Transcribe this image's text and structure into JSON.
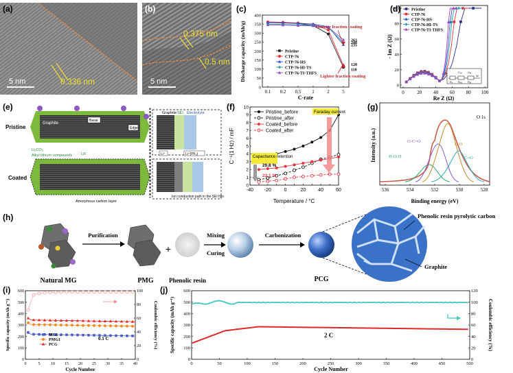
{
  "panel_labels": [
    "(a)",
    "(b)",
    "(c)",
    "(d)",
    "(e)",
    "(f)",
    "(g)",
    "(h)",
    "(i)",
    "(j)"
  ],
  "panel_a": {
    "scale": "5 nm",
    "spacing": "0.336 nm"
  },
  "panel_b": {
    "scale": "5 nm",
    "spacing_1": "0.375 nm",
    "spacing_2": "0.5 nm"
  },
  "panel_e": {
    "rows": [
      "Pristine",
      "Coated"
    ],
    "labels": [
      "Graphite",
      "SEI",
      "Electrolyte",
      "Li₂CO₃",
      "Alkyl lithium compounds",
      "LiF",
      "Amorphous carbon layer",
      "Ion conduction path in the SEI film"
    ],
    "boxes": [
      "Basal",
      "Edge",
      "Li⁺",
      "Li⁺(PF₆)"
    ]
  },
  "panel_g": {
    "title": "O 1s",
    "peaks": [
      "O-C=O",
      "C-O",
      "H-O-H",
      "C=O"
    ]
  },
  "panel_h": {
    "steps": [
      "Purification",
      "Mixing",
      "Curing",
      "Carbonization"
    ],
    "items": [
      "Natural MG",
      "PMG",
      "Phenolic resin",
      "PCG"
    ],
    "callouts": [
      "Phenolic resin pyrolytic carbon",
      "Graphite"
    ],
    "plus": "+"
  },
  "chart_data": [
    {
      "panel": "(c)",
      "type": "line",
      "xlabel": "C-rate",
      "ylabel": "Discharge capacity (mAh/g)",
      "categories": [
        "0.1",
        "0.2",
        "0.5",
        "1",
        "2",
        "5"
      ],
      "ylim": [
        0,
        400
      ],
      "yticks": [
        "0",
        "50",
        "100",
        "150",
        "200",
        "250",
        "300",
        "350",
        "400"
      ],
      "series": [
        {
          "name": "Pristine",
          "color": "#222222",
          "values": [
            358,
            357,
            353,
            342,
            295,
            110
          ]
        },
        {
          "name": "CTP-76",
          "color": "#e8303a",
          "values": [
            362,
            360,
            356,
            348,
            318,
            120
          ]
        },
        {
          "name": "CTP-76-HS",
          "color": "#2b4fd0",
          "values": [
            358,
            356,
            354,
            350,
            335,
            235
          ]
        },
        {
          "name": "CTP-76-HI-TS",
          "color": "#2a9aa6",
          "values": [
            350,
            348,
            346,
            343,
            330,
            248
          ]
        },
        {
          "name": "CTP-76-TI-THFS",
          "color": "#8a4ac8",
          "values": [
            345,
            344,
            342,
            340,
            332,
            263
          ]
        }
      ],
      "end_labels": [
        "263",
        "248",
        "235",
        "120",
        "110"
      ],
      "annotations": [
        "Heavier fraction coating",
        "Lighter fraction coating"
      ]
    },
    {
      "panel": "(d)",
      "type": "scatter",
      "xlabel": "Re Z (Ω)",
      "ylabel": "- Im Z (Ω)",
      "xlim": [
        0,
        100
      ],
      "ylim": [
        0,
        100
      ],
      "xticks": [
        "0",
        "20",
        "40",
        "60",
        "80",
        "100"
      ],
      "yticks": [
        "0",
        "20",
        "40",
        "60",
        "80",
        "100"
      ],
      "series": [
        {
          "name": "Pristine",
          "color": "#2a2a8a"
        },
        {
          "name": "CTP-76",
          "color": "#e8303a"
        },
        {
          "name": "CTP-76-HS",
          "color": "#2b4fd0"
        },
        {
          "name": "CTP-76-HI-TS",
          "color": "#2a9aa6"
        },
        {
          "name": "CTP-76-TI-THFS",
          "color": "#a040c0"
        }
      ],
      "circuit_labels": [
        "Rₛ",
        "Rₛₑ",
        "Cₛₑ",
        "Rₑₜ",
        "Cₑₜ",
        "W"
      ]
    },
    {
      "panel": "(f)",
      "type": "line",
      "xlabel": "Temperature / °C",
      "ylabel": "C⁻¹(1 Hz) / mF",
      "x": [
        -30,
        -20,
        -10,
        0,
        10,
        20,
        30,
        40,
        50,
        60
      ],
      "xlim": [
        -40,
        60
      ],
      "ylim": [
        0,
        10
      ],
      "xticks": [
        "-40",
        "-30",
        "-20",
        "-10",
        "0",
        "10",
        "20",
        "30",
        "40",
        "50",
        "60"
      ],
      "yticks": [
        "0",
        "1",
        "2",
        "3",
        "4",
        "5",
        "6",
        "7",
        "8",
        "9",
        "10"
      ],
      "series": [
        {
          "name": "Pristine_before",
          "color": "#111111",
          "values": [
            3.4,
            3.7,
            4.0,
            4.3,
            4.6,
            5.0,
            5.5,
            6.1,
            7.0,
            9.0
          ]
        },
        {
          "name": "Pristine_after",
          "color": "#111111",
          "values": [
            0.7,
            0.9,
            1.2,
            1.5,
            1.9,
            2.3,
            2.8,
            3.3,
            3.6,
            3.9
          ]
        },
        {
          "name": "Coated_before",
          "color": "#e8303a",
          "values": [
            2.0,
            2.1,
            2.2,
            2.4,
            2.6,
            2.8,
            3.0,
            3.2,
            3.4,
            3.6
          ]
        },
        {
          "name": "Coated_after",
          "color": "#e8303a",
          "values": [
            0.4,
            0.5,
            0.6,
            0.8,
            1.0,
            1.1,
            1.2,
            1.3,
            1.4,
            1.4
          ]
        }
      ],
      "annotations": [
        "Faraday current",
        "Capacitance retention",
        "20.8 %",
        "23.1 %"
      ]
    },
    {
      "panel": "(g)",
      "type": "line",
      "xlabel": "Binding energy (eV)",
      "ylabel": "Intensity (a.u.)",
      "xlim": [
        536,
        528
      ],
      "xticks": [
        "536",
        "534",
        "532",
        "530",
        "528"
      ]
    },
    {
      "panel": "(i)",
      "type": "line",
      "xlabel": "Cycle Number",
      "ylabel": "Specific capacity (mAh g⁻¹)",
      "y2label": "Coulombic efficiency (%)",
      "xlim": [
        0,
        40
      ],
      "ylim": [
        0,
        600
      ],
      "y2lim": [
        0,
        100
      ],
      "xticks": [
        "0",
        "5",
        "10",
        "15",
        "20",
        "25",
        "30",
        "35",
        "40"
      ],
      "yticks": [
        "0",
        "100",
        "200",
        "300",
        "400",
        "500",
        "600"
      ],
      "y2ticks": [
        "0",
        "20",
        "40",
        "60",
        "80",
        "100"
      ],
      "rate": "0.1 C",
      "series": [
        {
          "name": "MG1",
          "color": "#4a5cc8",
          "value": 220
        },
        {
          "name": "PMG1",
          "color": "#f08a2a",
          "value": 305
        },
        {
          "name": "PCG",
          "color": "#e02828",
          "value": 345
        },
        {
          "name": "Coulombic efficiency",
          "color": "#f4a6a6",
          "value": 98
        }
      ]
    },
    {
      "panel": "(j)",
      "type": "line",
      "xlabel": "Cycle Number",
      "ylabel": "Specific capacity (mAh g⁻¹)",
      "y2label": "Coulombic efficiency (%)",
      "xlim": [
        0,
        500
      ],
      "ylim": [
        0,
        600
      ],
      "y2lim": [
        0,
        120
      ],
      "xticks": [
        "0",
        "50",
        "100",
        "150",
        "200",
        "250",
        "300",
        "350",
        "400",
        "450",
        "500"
      ],
      "yticks": [
        "0",
        "100",
        "200",
        "300",
        "400",
        "500",
        "600"
      ],
      "y2ticks": [
        "0",
        "20",
        "40",
        "60",
        "80",
        "100",
        "120"
      ],
      "rate": "2 C",
      "series": [
        {
          "name": "Specific capacity",
          "color": "#e02828",
          "start": 140,
          "plateau": 285,
          "end": 262
        },
        {
          "name": "Coulombic efficiency",
          "color": "#3cc8c0",
          "value": 99.5
        }
      ]
    }
  ]
}
